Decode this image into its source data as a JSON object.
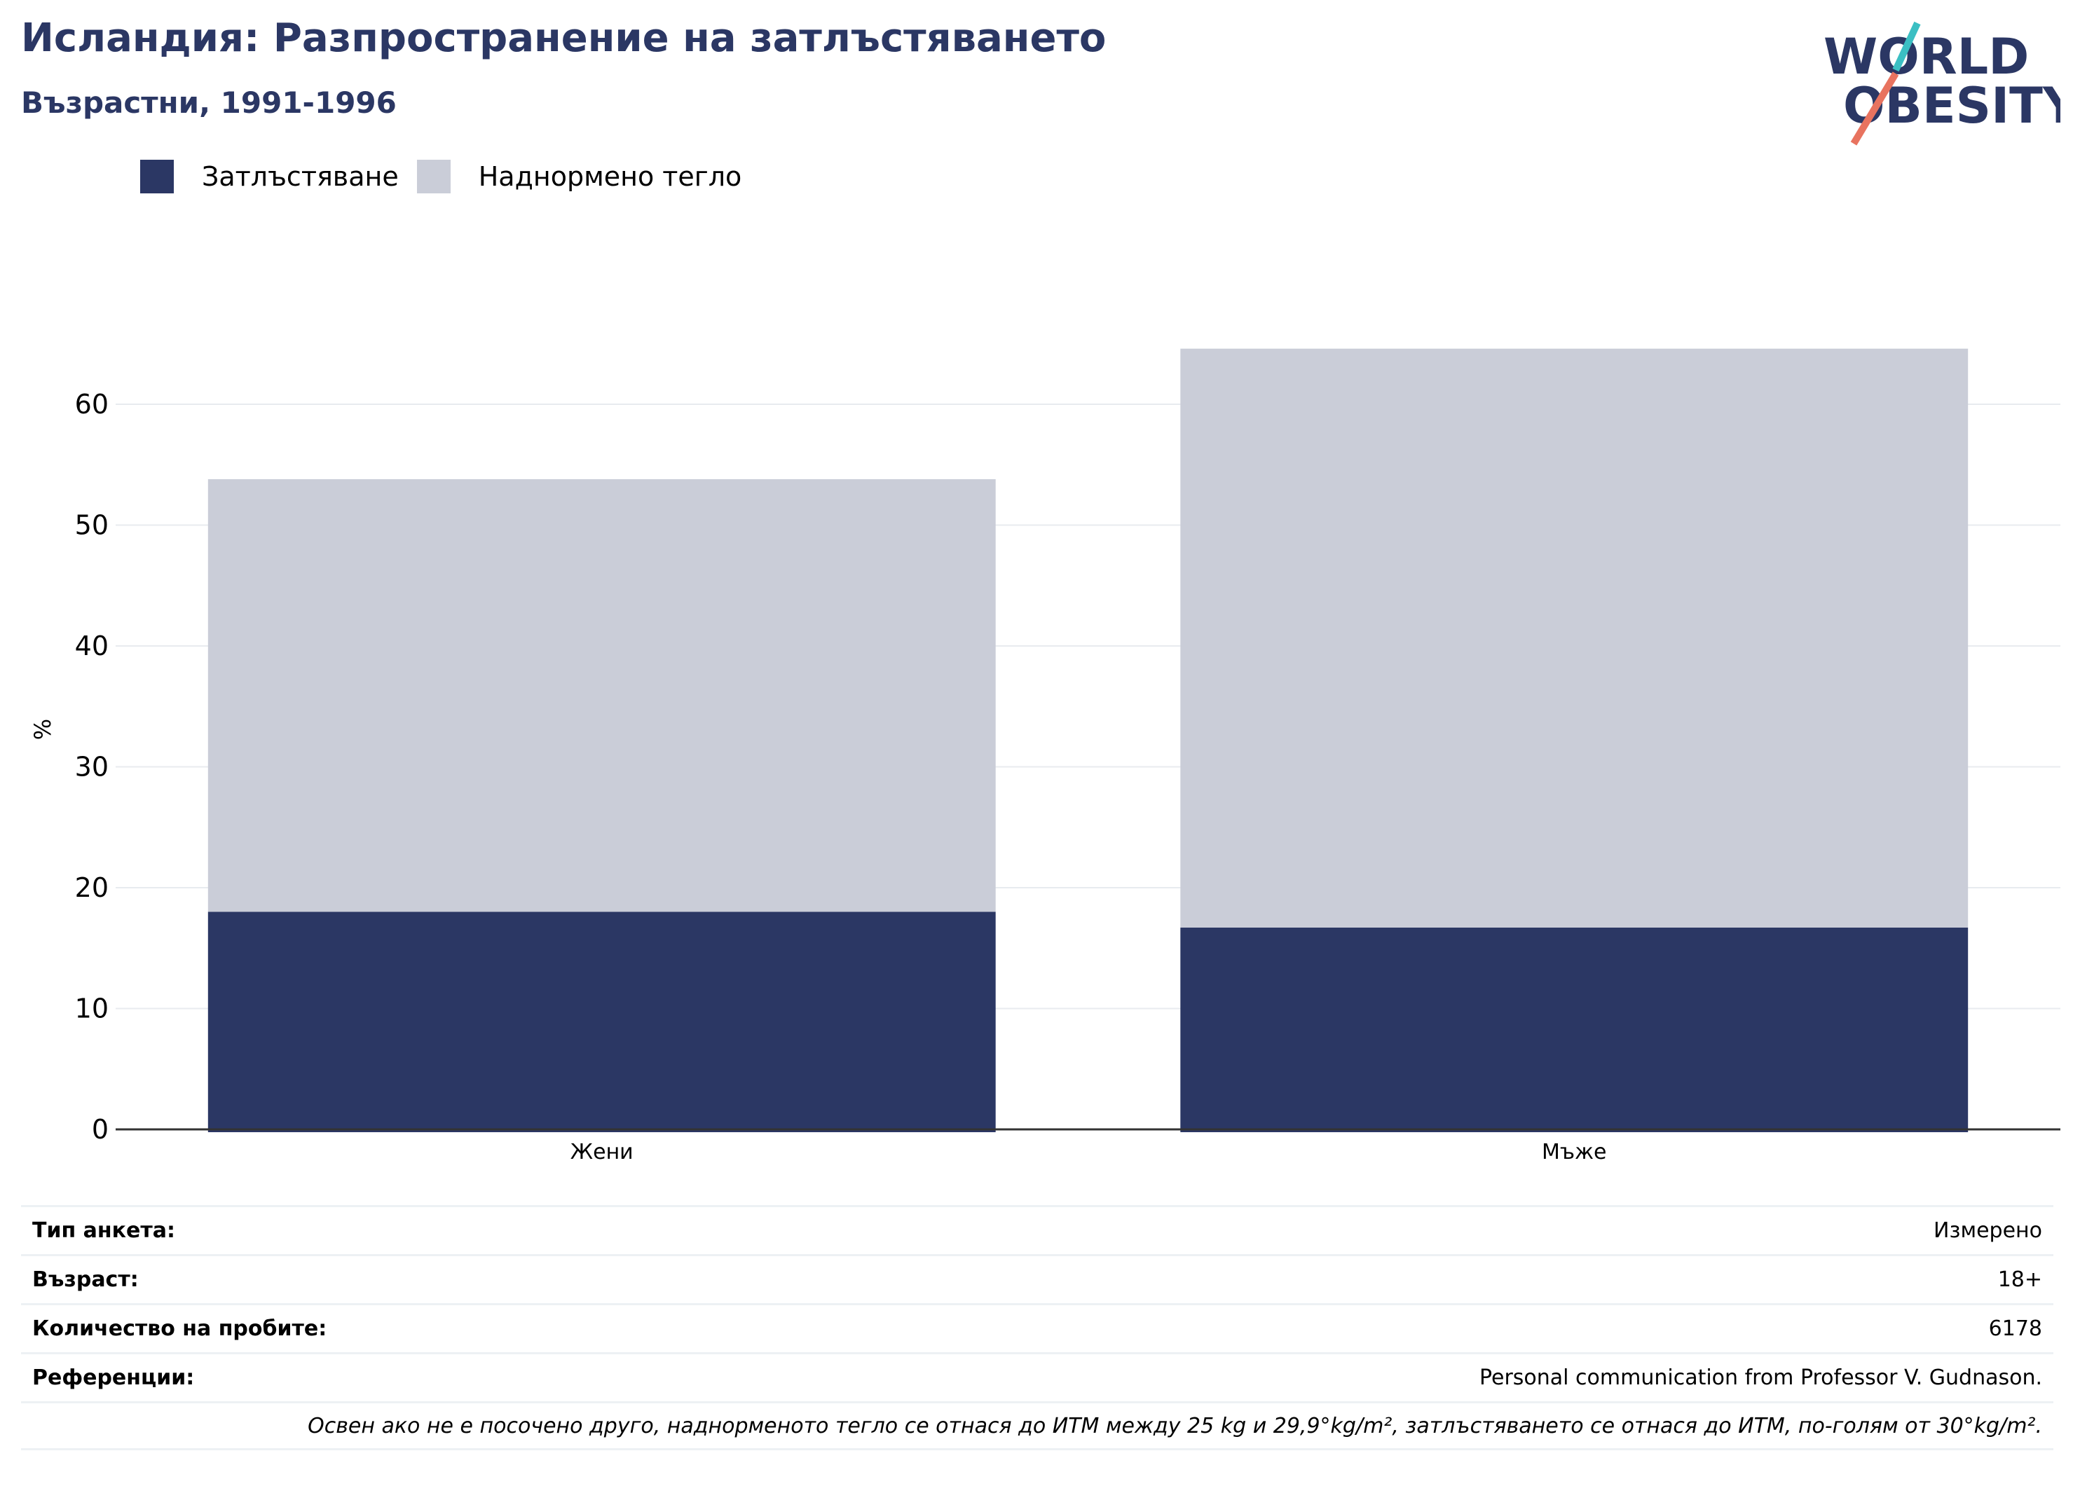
{
  "header": {
    "title": "Исландия: Разпространение на затлъстяването",
    "subtitle": "Възрастни, 1991-1996"
  },
  "logo": {
    "line1": "WORLD",
    "line2": "OBESITY"
  },
  "colors": {
    "obesity": "#2b3764",
    "overweight": "#cacdd8",
    "title": "#2b3764",
    "logo_teal": "#3bbfc3",
    "logo_red": "#e8735f"
  },
  "chart_data": {
    "type": "bar",
    "stacked": true,
    "categories": [
      "Жени",
      "Мъже"
    ],
    "series": [
      {
        "name": "Затлъстяване",
        "values": [
          18.0,
          16.7
        ]
      },
      {
        "name": "Наднормено тегло",
        "values": [
          35.8,
          47.9
        ]
      }
    ],
    "ylabel": "%",
    "xlabel": "",
    "ylim": [
      0,
      65
    ],
    "yticks": [
      0,
      10,
      20,
      30,
      40,
      50,
      60
    ],
    "grid": true,
    "legend_position": "top-left"
  },
  "info": {
    "rows": [
      {
        "label": "Тип анкета:",
        "value": "Измерено"
      },
      {
        "label": "Възраст:",
        "value": "18+"
      },
      {
        "label": "Количество на пробите:",
        "value": "6178"
      },
      {
        "label": "Референции:",
        "value": "Personal communication from Professor V. Gudnason."
      }
    ],
    "note": "Освен ако не е посочено друго, наднорменото тегло се отнася до ИТМ между 25 kg и 29,9°kg/m², затлъстяването се отнася до ИТМ, по-голям от 30°kg/m²."
  }
}
